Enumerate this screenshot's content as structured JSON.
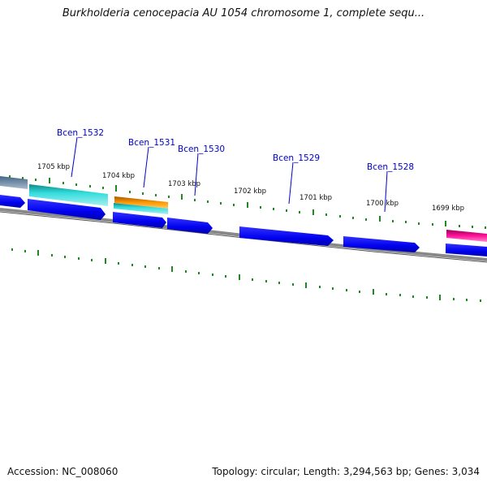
{
  "title": "Burkholderia cenocepacia AU 1054 chromosome 1, complete sequ...",
  "footer": {
    "accession": "Accession: NC_008060",
    "topology": "Topology: circular; Length: 3,294,563 bp; Genes: 3,034"
  },
  "colors": {
    "gene_blue": "#0000ee",
    "cyan": "#22cccc",
    "orange": "#ee8800",
    "magenta": "#ee1199",
    "steel": "#6688aa",
    "backbone": "#888888",
    "tick": "#228822",
    "label": "#0000cc"
  },
  "ruler_labels": [
    "1705 kbp",
    "1704 kbp",
    "1703 kbp",
    "1702 kbp",
    "1701 kbp",
    "1700 kbp",
    "1699 kbp"
  ],
  "gene_labels": [
    "Bcen_1532",
    "Bcen_1531",
    "Bcen_1530",
    "Bcen_1529",
    "Bcen_1528"
  ]
}
